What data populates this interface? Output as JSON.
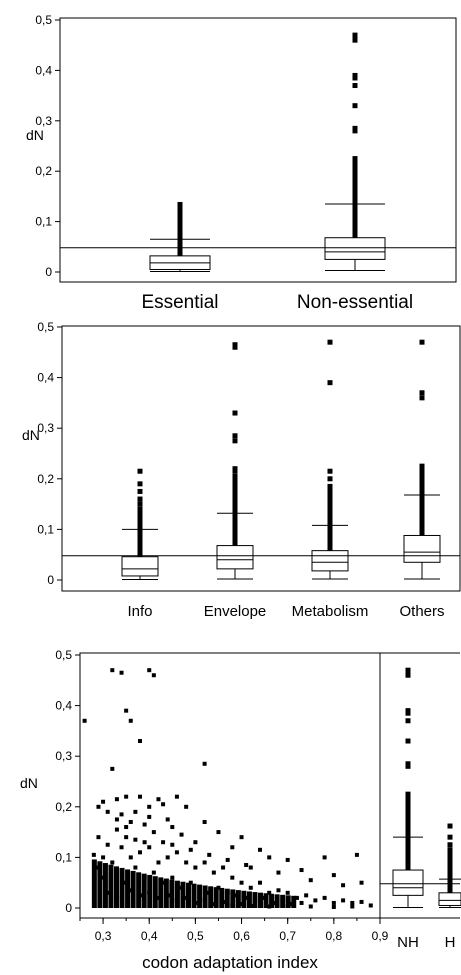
{
  "chart_data": [
    {
      "type": "box",
      "ylabel": "dN",
      "ylim": [
        0,
        0.5
      ],
      "yticks": [
        "0",
        "0,1",
        "0,2",
        "0,3",
        "0,4",
        "0,5"
      ],
      "reference_line": 0.048,
      "categories": [
        "Essential",
        "Non-essential"
      ],
      "boxes": [
        {
          "q1": 0.005,
          "median": 0.018,
          "q3": 0.032,
          "whisker_low": 0.001,
          "whisker_high": 0.065,
          "outliers": [
            0.068,
            0.072,
            0.076,
            0.08,
            0.084,
            0.088,
            0.092,
            0.097,
            0.102,
            0.11,
            0.118,
            0.125,
            0.134
          ]
        },
        {
          "q1": 0.025,
          "median": 0.04,
          "q3": 0.068,
          "whisker_low": 0.003,
          "whisker_high": 0.135,
          "outliers": [
            0.14,
            0.145,
            0.15,
            0.155,
            0.16,
            0.165,
            0.17,
            0.175,
            0.18,
            0.185,
            0.19,
            0.195,
            0.2,
            0.205,
            0.21,
            0.215,
            0.22,
            0.225,
            0.28,
            0.285,
            0.33,
            0.37,
            0.385,
            0.39,
            0.46,
            0.465,
            0.47
          ]
        }
      ]
    },
    {
      "type": "box",
      "ylabel": "dN",
      "ylim": [
        0,
        0.5
      ],
      "yticks": [
        "0",
        "0,1",
        "0,2",
        "0,3",
        "0,4",
        "0,5"
      ],
      "reference_line": 0.048,
      "categories": [
        "Info",
        "Envelope",
        "Metabolism",
        "Others"
      ],
      "boxes": [
        {
          "q1": 0.008,
          "median": 0.022,
          "q3": 0.046,
          "whisker_low": 0.001,
          "whisker_high": 0.1,
          "outliers": [
            0.105,
            0.11,
            0.115,
            0.12,
            0.125,
            0.13,
            0.135,
            0.14,
            0.15,
            0.16,
            0.175,
            0.19,
            0.215
          ]
        },
        {
          "q1": 0.022,
          "median": 0.04,
          "q3": 0.068,
          "whisker_low": 0.002,
          "whisker_high": 0.132,
          "outliers": [
            0.137,
            0.142,
            0.147,
            0.152,
            0.157,
            0.162,
            0.167,
            0.172,
            0.177,
            0.182,
            0.187,
            0.192,
            0.197,
            0.205,
            0.215,
            0.22,
            0.275,
            0.285,
            0.33,
            0.46,
            0.465
          ]
        },
        {
          "q1": 0.018,
          "median": 0.035,
          "q3": 0.058,
          "whisker_low": 0.002,
          "whisker_high": 0.108,
          "outliers": [
            0.113,
            0.118,
            0.123,
            0.128,
            0.133,
            0.138,
            0.143,
            0.148,
            0.153,
            0.158,
            0.163,
            0.168,
            0.173,
            0.178,
            0.185,
            0.2,
            0.215,
            0.39,
            0.47
          ]
        },
        {
          "q1": 0.035,
          "median": 0.055,
          "q3": 0.088,
          "whisker_low": 0.002,
          "whisker_high": 0.168,
          "outliers": [
            0.172,
            0.177,
            0.182,
            0.187,
            0.192,
            0.197,
            0.202,
            0.207,
            0.212,
            0.22,
            0.225,
            0.36,
            0.37,
            0.47
          ]
        }
      ]
    },
    {
      "type": "scatter",
      "xlabel": "codon adaptation index",
      "ylabel": "dN",
      "xlim": [
        0.25,
        0.9
      ],
      "ylim": [
        0,
        0.5
      ],
      "xticks": [
        "0,3",
        "0,4",
        "0,5",
        "0,6",
        "0,7",
        "0,8",
        "0,9"
      ],
      "yticks": [
        "0",
        "0,1",
        "0,2",
        "0,3",
        "0,4",
        "0,5"
      ],
      "points": [
        [
          0.26,
          0.37
        ],
        [
          0.32,
          0.47
        ],
        [
          0.34,
          0.465
        ],
        [
          0.4,
          0.47
        ],
        [
          0.41,
          0.46
        ],
        [
          0.35,
          0.39
        ],
        [
          0.36,
          0.37
        ],
        [
          0.38,
          0.33
        ],
        [
          0.32,
          0.275
        ],
        [
          0.52,
          0.285
        ],
        [
          0.33,
          0.215
        ],
        [
          0.3,
          0.21
        ],
        [
          0.29,
          0.2
        ],
        [
          0.35,
          0.22
        ],
        [
          0.38,
          0.22
        ],
        [
          0.42,
          0.215
        ],
        [
          0.46,
          0.22
        ],
        [
          0.43,
          0.205
        ],
        [
          0.31,
          0.19
        ],
        [
          0.34,
          0.185
        ],
        [
          0.37,
          0.19
        ],
        [
          0.4,
          0.2
        ],
        [
          0.48,
          0.2
        ],
        [
          0.36,
          0.17
        ],
        [
          0.39,
          0.165
        ],
        [
          0.44,
          0.175
        ],
        [
          0.52,
          0.17
        ],
        [
          0.29,
          0.14
        ],
        [
          0.33,
          0.155
        ],
        [
          0.41,
          0.15
        ],
        [
          0.47,
          0.145
        ],
        [
          0.55,
          0.15
        ],
        [
          0.6,
          0.14
        ],
        [
          0.5,
          0.13
        ],
        [
          0.58,
          0.12
        ],
        [
          0.64,
          0.115
        ],
        [
          0.66,
          0.1
        ],
        [
          0.7,
          0.095
        ],
        [
          0.78,
          0.1
        ],
        [
          0.85,
          0.105
        ],
        [
          0.73,
          0.075
        ],
        [
          0.8,
          0.065
        ],
        [
          0.62,
          0.08
        ],
        [
          0.68,
          0.07
        ],
        [
          0.75,
          0.055
        ],
        [
          0.82,
          0.045
        ],
        [
          0.86,
          0.05
        ],
        [
          0.3,
          0.1
        ],
        [
          0.28,
          0.105
        ],
        [
          0.32,
          0.09
        ],
        [
          0.34,
          0.12
        ],
        [
          0.36,
          0.1
        ],
        [
          0.38,
          0.11
        ],
        [
          0.4,
          0.12
        ],
        [
          0.42,
          0.09
        ],
        [
          0.44,
          0.1
        ],
        [
          0.46,
          0.11
        ],
        [
          0.48,
          0.09
        ],
        [
          0.5,
          0.08
        ],
        [
          0.52,
          0.09
        ],
        [
          0.54,
          0.07
        ],
        [
          0.56,
          0.08
        ],
        [
          0.58,
          0.06
        ],
        [
          0.6,
          0.05
        ],
        [
          0.62,
          0.04
        ],
        [
          0.64,
          0.05
        ],
        [
          0.66,
          0.03
        ],
        [
          0.68,
          0.035
        ],
        [
          0.7,
          0.03
        ],
        [
          0.72,
          0.02
        ],
        [
          0.74,
          0.025
        ],
        [
          0.76,
          0.015
        ],
        [
          0.78,
          0.02
        ],
        [
          0.8,
          0.01
        ],
        [
          0.82,
          0.015
        ],
        [
          0.84,
          0.01
        ],
        [
          0.86,
          0.012
        ],
        [
          0.88,
          0.005
        ],
        [
          0.3,
          0.06
        ],
        [
          0.33,
          0.07
        ],
        [
          0.35,
          0.05
        ],
        [
          0.37,
          0.08
        ],
        [
          0.39,
          0.06
        ],
        [
          0.41,
          0.07
        ],
        [
          0.43,
          0.05
        ],
        [
          0.45,
          0.06
        ],
        [
          0.47,
          0.04
        ],
        [
          0.49,
          0.05
        ],
        [
          0.51,
          0.04
        ],
        [
          0.53,
          0.03
        ],
        [
          0.55,
          0.04
        ],
        [
          0.57,
          0.03
        ],
        [
          0.59,
          0.025
        ],
        [
          0.61,
          0.02
        ],
        [
          0.63,
          0.015
        ],
        [
          0.65,
          0.02
        ],
        [
          0.67,
          0.01
        ],
        [
          0.69,
          0.015
        ],
        [
          0.71,
          0.008
        ],
        [
          0.73,
          0.01
        ],
        [
          0.31,
          0.03
        ],
        [
          0.34,
          0.02
        ],
        [
          0.36,
          0.035
        ],
        [
          0.38,
          0.025
        ],
        [
          0.4,
          0.03
        ],
        [
          0.42,
          0.02
        ],
        [
          0.44,
          0.025
        ],
        [
          0.46,
          0.015
        ],
        [
          0.48,
          0.02
        ],
        [
          0.5,
          0.01
        ],
        [
          0.52,
          0.015
        ],
        [
          0.54,
          0.008
        ],
        [
          0.56,
          0.012
        ],
        [
          0.58,
          0.005
        ],
        [
          0.6,
          0.008
        ],
        [
          0.62,
          0.004
        ],
        [
          0.64,
          0.006
        ],
        [
          0.66,
          0.003
        ],
        [
          0.7,
          0.004
        ],
        [
          0.75,
          0.003
        ],
        [
          0.8,
          0.002
        ],
        [
          0.84,
          0.003
        ],
        [
          0.29,
          0.08
        ],
        [
          0.31,
          0.125
        ],
        [
          0.35,
          0.14
        ],
        [
          0.37,
          0.135
        ],
        [
          0.39,
          0.13
        ],
        [
          0.43,
          0.13
        ],
        [
          0.45,
          0.125
        ],
        [
          0.49,
          0.115
        ],
        [
          0.53,
          0.105
        ],
        [
          0.57,
          0.095
        ],
        [
          0.61,
          0.085
        ],
        [
          0.35,
          0.16
        ],
        [
          0.33,
          0.175
        ],
        [
          0.45,
          0.16
        ],
        [
          0.4,
          0.18
        ]
      ]
    },
    {
      "type": "box",
      "categories": [
        "NH",
        "H"
      ],
      "ylim": [
        0,
        0.5
      ],
      "reference_line": 0.048,
      "boxes": [
        {
          "q1": 0.025,
          "median": 0.04,
          "q3": 0.075,
          "whisker_low": 0.001,
          "whisker_high": 0.14,
          "outliers": [
            0.145,
            0.15,
            0.155,
            0.16,
            0.165,
            0.17,
            0.175,
            0.18,
            0.185,
            0.19,
            0.195,
            0.2,
            0.205,
            0.21,
            0.215,
            0.22,
            0.225,
            0.28,
            0.285,
            0.33,
            0.37,
            0.385,
            0.39,
            0.46,
            0.465,
            0.47
          ]
        },
        {
          "q1": 0.005,
          "median": 0.015,
          "q3": 0.03,
          "whisker_low": 0.001,
          "whisker_high": 0.057,
          "outliers": [
            0.062,
            0.067,
            0.072,
            0.077,
            0.082,
            0.087,
            0.092,
            0.097,
            0.102,
            0.108,
            0.115,
            0.125,
            0.14,
            0.162
          ]
        }
      ]
    }
  ]
}
